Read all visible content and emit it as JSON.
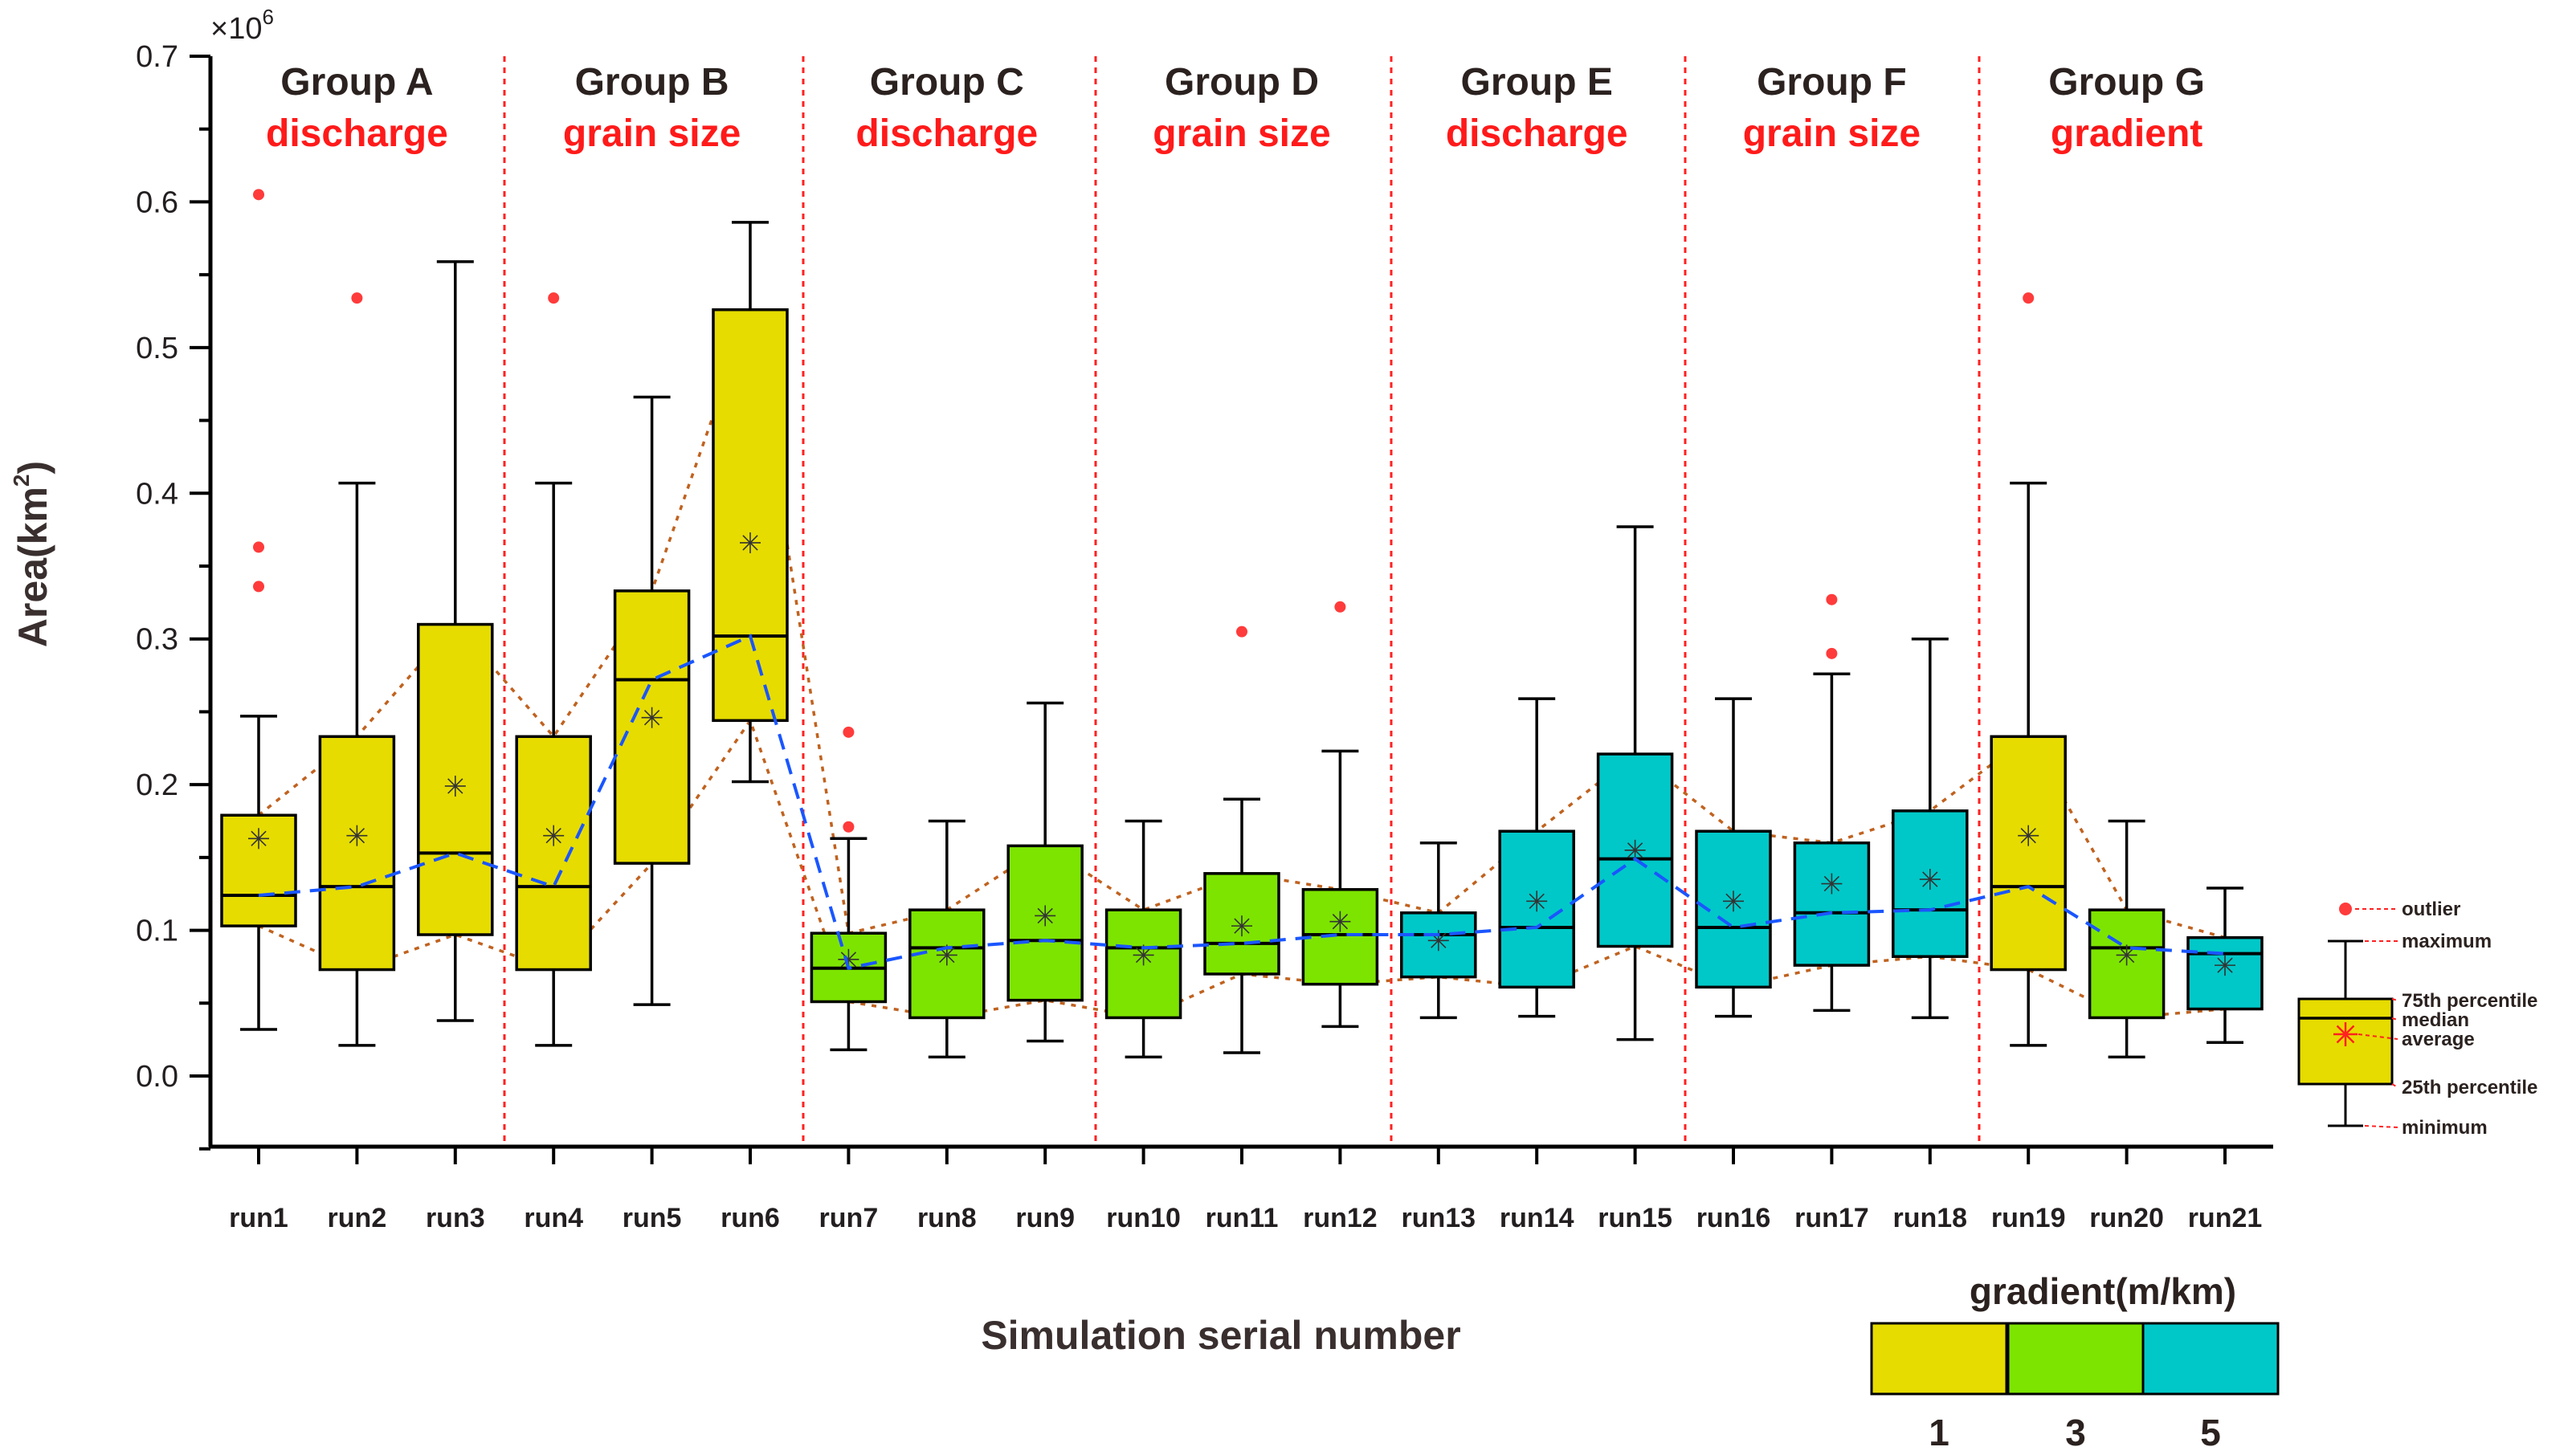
{
  "chart_data": {
    "type": "box",
    "title": "",
    "xlabel": "Simulation serial number",
    "ylabel_main": "Area(km",
    "ylabel_sup": "2",
    "ylabel_end": ")",
    "y_multiplier_base": "×10",
    "y_multiplier_exp": "6",
    "ylim": [
      -0.05,
      0.7
    ],
    "yticks": [
      0.0,
      0.1,
      0.2,
      0.3,
      0.4,
      0.5,
      0.6,
      0.7
    ],
    "ytick_labels": [
      "0.0",
      "0.1",
      "0.2",
      "0.3",
      "0.4",
      "0.5",
      "0.6",
      "0.7"
    ],
    "categories": [
      "run1",
      "run2",
      "run3",
      "run4",
      "run5",
      "run6",
      "run7",
      "run8",
      "run9",
      "run10",
      "run11",
      "run12",
      "run13",
      "run14",
      "run15",
      "run16",
      "run17",
      "run18",
      "run19",
      "run20",
      "run21"
    ],
    "gradient_colors": {
      "1": "#e6dc00",
      "3": "#7de400",
      "5": "#00c8c8"
    },
    "boxes": [
      {
        "run": "run1",
        "gradient": 1,
        "min": 0.032,
        "q1": 0.103,
        "median": 0.124,
        "q3": 0.179,
        "max": 0.247,
        "mean": 0.163,
        "outliers": [
          0.605,
          0.363,
          0.336
        ]
      },
      {
        "run": "run2",
        "gradient": 1,
        "min": 0.021,
        "q1": 0.073,
        "median": 0.13,
        "q3": 0.233,
        "max": 0.407,
        "mean": 0.165,
        "outliers": [
          0.534
        ]
      },
      {
        "run": "run3",
        "gradient": 1,
        "min": 0.038,
        "q1": 0.097,
        "median": 0.153,
        "q3": 0.31,
        "max": 0.559,
        "mean": 0.199,
        "outliers": []
      },
      {
        "run": "run4",
        "gradient": 1,
        "min": 0.021,
        "q1": 0.073,
        "median": 0.13,
        "q3": 0.233,
        "max": 0.407,
        "mean": 0.165,
        "outliers": [
          0.534
        ]
      },
      {
        "run": "run5",
        "gradient": 1,
        "min": 0.049,
        "q1": 0.146,
        "median": 0.272,
        "q3": 0.333,
        "max": 0.466,
        "mean": 0.246,
        "outliers": []
      },
      {
        "run": "run6",
        "gradient": 1,
        "min": 0.202,
        "q1": 0.244,
        "median": 0.302,
        "q3": 0.526,
        "max": 0.586,
        "mean": 0.366,
        "outliers": []
      },
      {
        "run": "run7",
        "gradient": 3,
        "min": 0.018,
        "q1": 0.051,
        "median": 0.074,
        "q3": 0.098,
        "max": 0.163,
        "mean": 0.08,
        "outliers": [
          0.236,
          0.171
        ]
      },
      {
        "run": "run8",
        "gradient": 3,
        "min": 0.013,
        "q1": 0.04,
        "median": 0.088,
        "q3": 0.114,
        "max": 0.175,
        "mean": 0.083,
        "outliers": []
      },
      {
        "run": "run9",
        "gradient": 3,
        "min": 0.024,
        "q1": 0.052,
        "median": 0.093,
        "q3": 0.158,
        "max": 0.256,
        "mean": 0.11,
        "outliers": []
      },
      {
        "run": "run10",
        "gradient": 3,
        "min": 0.013,
        "q1": 0.04,
        "median": 0.088,
        "q3": 0.114,
        "max": 0.175,
        "mean": 0.083,
        "outliers": []
      },
      {
        "run": "run11",
        "gradient": 3,
        "min": 0.016,
        "q1": 0.07,
        "median": 0.091,
        "q3": 0.139,
        "max": 0.19,
        "mean": 0.103,
        "outliers": [
          0.305
        ]
      },
      {
        "run": "run12",
        "gradient": 3,
        "min": 0.034,
        "q1": 0.063,
        "median": 0.097,
        "q3": 0.128,
        "max": 0.223,
        "mean": 0.106,
        "outliers": [
          0.322
        ]
      },
      {
        "run": "run13",
        "gradient": 5,
        "min": 0.04,
        "q1": 0.068,
        "median": 0.097,
        "q3": 0.112,
        "max": 0.16,
        "mean": 0.093,
        "outliers": []
      },
      {
        "run": "run14",
        "gradient": 5,
        "min": 0.041,
        "q1": 0.061,
        "median": 0.102,
        "q3": 0.168,
        "max": 0.259,
        "mean": 0.12,
        "outliers": []
      },
      {
        "run": "run15",
        "gradient": 5,
        "min": 0.025,
        "q1": 0.089,
        "median": 0.149,
        "q3": 0.221,
        "max": 0.377,
        "mean": 0.155,
        "outliers": []
      },
      {
        "run": "run16",
        "gradient": 5,
        "min": 0.041,
        "q1": 0.061,
        "median": 0.102,
        "q3": 0.168,
        "max": 0.259,
        "mean": 0.12,
        "outliers": []
      },
      {
        "run": "run17",
        "gradient": 5,
        "min": 0.045,
        "q1": 0.076,
        "median": 0.112,
        "q3": 0.16,
        "max": 0.276,
        "mean": 0.132,
        "outliers": [
          0.327,
          0.29
        ]
      },
      {
        "run": "run18",
        "gradient": 5,
        "min": 0.04,
        "q1": 0.082,
        "median": 0.114,
        "q3": 0.182,
        "max": 0.3,
        "mean": 0.135,
        "outliers": []
      },
      {
        "run": "run19",
        "gradient": 1,
        "min": 0.021,
        "q1": 0.073,
        "median": 0.13,
        "q3": 0.233,
        "max": 0.407,
        "mean": 0.165,
        "outliers": [
          0.534
        ]
      },
      {
        "run": "run20",
        "gradient": 3,
        "min": 0.013,
        "q1": 0.04,
        "median": 0.088,
        "q3": 0.114,
        "max": 0.175,
        "mean": 0.083,
        "outliers": []
      },
      {
        "run": "run21",
        "gradient": 5,
        "min": 0.023,
        "q1": 0.046,
        "median": 0.084,
        "q3": 0.095,
        "max": 0.129,
        "mean": 0.076,
        "outliers": []
      }
    ],
    "groups": [
      {
        "title": "Group A",
        "variable": "discharge",
        "runs": [
          1,
          3
        ]
      },
      {
        "title": "Group B",
        "variable": "grain size",
        "runs": [
          4,
          6
        ]
      },
      {
        "title": "Group C",
        "variable": "discharge",
        "runs": [
          7,
          9
        ]
      },
      {
        "title": "Group D",
        "variable": "grain size",
        "runs": [
          10,
          12
        ]
      },
      {
        "title": "Group E",
        "variable": "discharge",
        "runs": [
          13,
          15
        ]
      },
      {
        "title": "Group F",
        "variable": "grain size",
        "runs": [
          16,
          18
        ]
      },
      {
        "title": "Group G",
        "variable": "gradient",
        "runs": [
          19,
          21
        ]
      }
    ],
    "box_legend": [
      "outlier",
      "maximum",
      "75th percentile",
      "median",
      "average",
      "25th percentile",
      "minimum"
    ],
    "gradient_legend": {
      "title": "gradient(m/km)",
      "values": [
        "1",
        "3",
        "5"
      ]
    }
  }
}
